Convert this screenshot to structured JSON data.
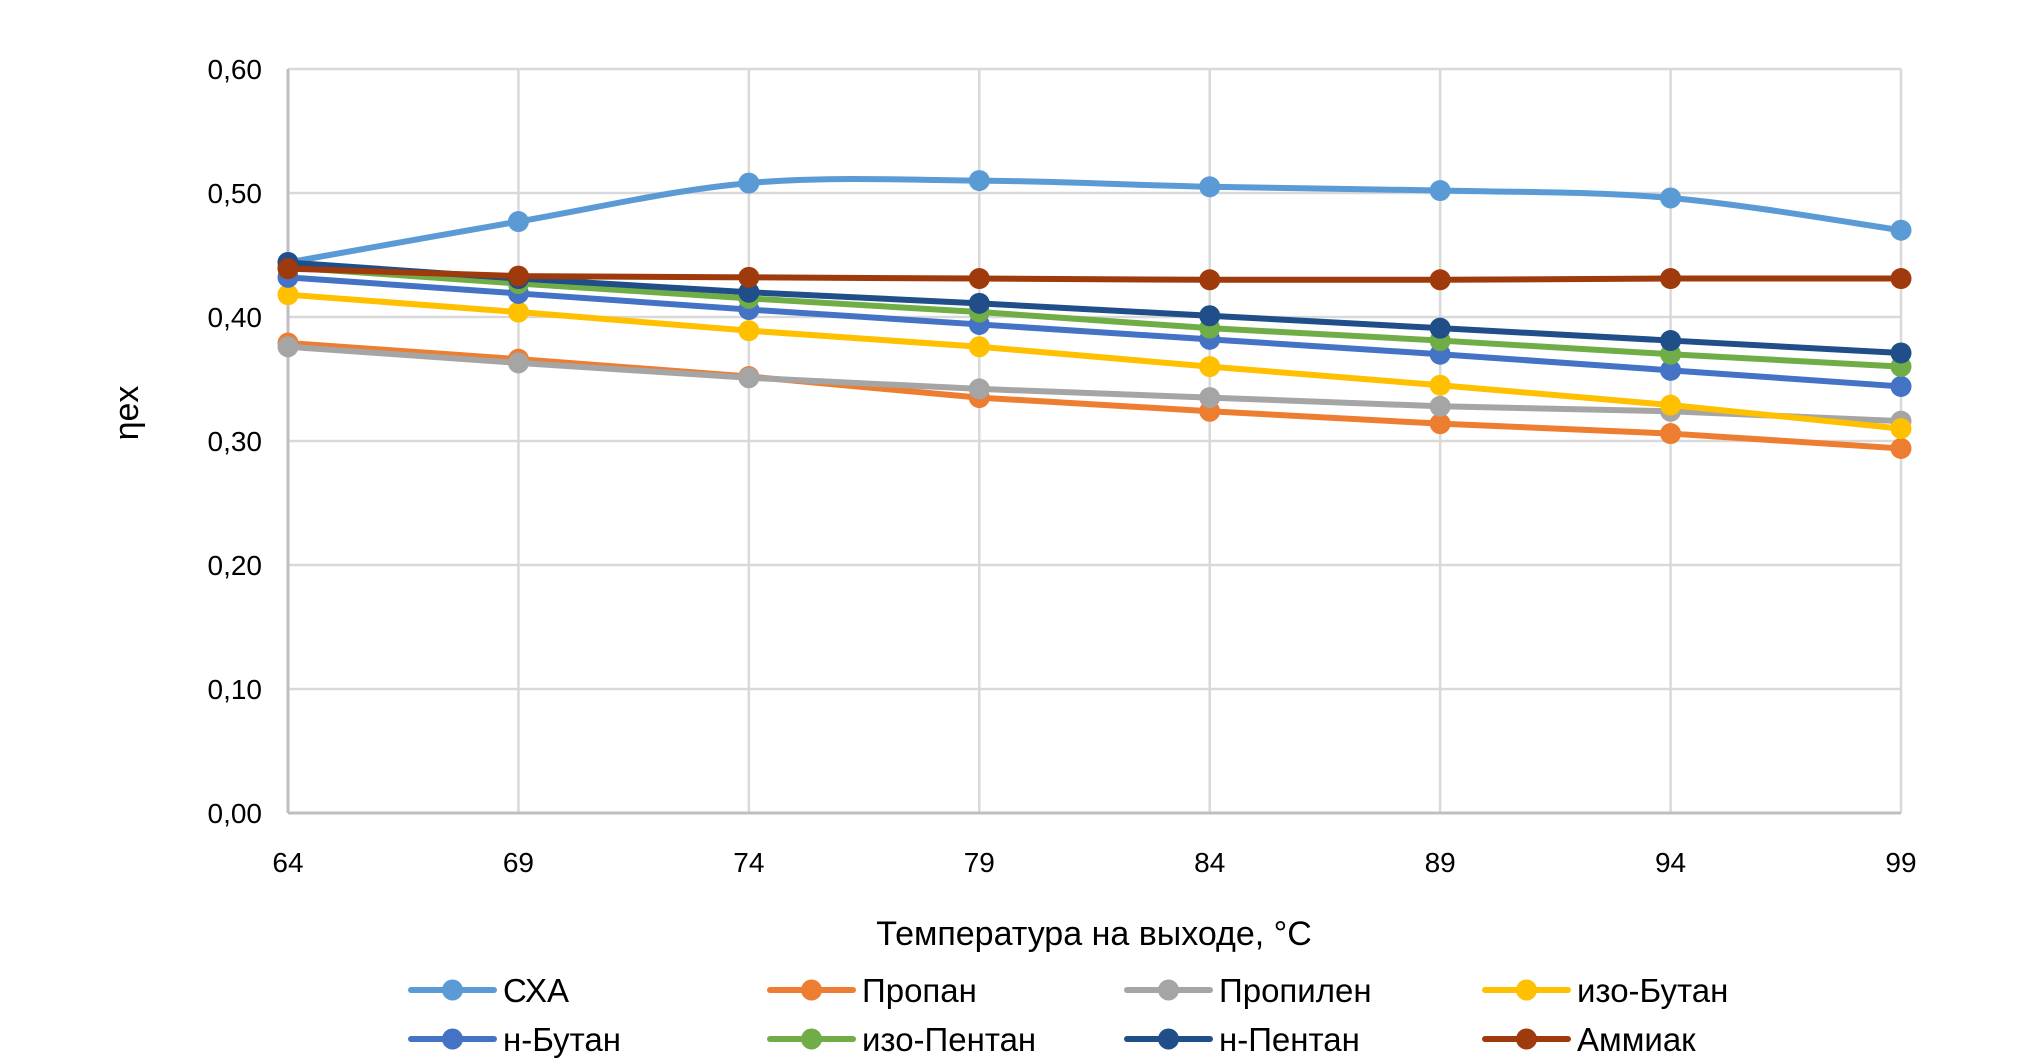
{
  "chart_data": {
    "type": "line",
    "title": "",
    "xlabel": "Температура на выходе, °C",
    "ylabel": "ηex",
    "x": [
      64,
      69,
      74,
      79,
      84,
      89,
      94,
      99
    ],
    "x_tick_labels": [
      "64",
      "69",
      "74",
      "79",
      "84",
      "89",
      "94",
      "99"
    ],
    "ylim": [
      0,
      0.6
    ],
    "y_ticks": [
      0,
      0.1,
      0.2,
      0.3,
      0.4,
      0.5,
      0.6
    ],
    "y_tick_labels": [
      "0,00",
      "0,10",
      "0,20",
      "0,30",
      "0,40",
      "0,50",
      "0,60"
    ],
    "grid": true,
    "legend_position": "bottom",
    "series": [
      {
        "name": "СХА",
        "color": "#5B9BD5",
        "smooth": true,
        "values": [
          0.444,
          0.477,
          0.508,
          0.51,
          0.505,
          0.502,
          0.496,
          0.47
        ]
      },
      {
        "name": "Пропан",
        "color": "#ED7D31",
        "smooth": false,
        "values": [
          0.379,
          0.366,
          0.352,
          0.335,
          0.324,
          0.314,
          0.306,
          0.294
        ]
      },
      {
        "name": "Пропилен",
        "color": "#A5A5A5",
        "smooth": false,
        "values": [
          0.376,
          0.363,
          0.351,
          0.342,
          0.335,
          0.328,
          0.324,
          0.316
        ]
      },
      {
        "name": "изо-Бутан",
        "color": "#FFC000",
        "smooth": false,
        "values": [
          0.418,
          0.404,
          0.389,
          0.376,
          0.36,
          0.345,
          0.329,
          0.31
        ]
      },
      {
        "name": "н-Бутан",
        "color": "#4472C4",
        "smooth": false,
        "values": [
          0.432,
          0.419,
          0.406,
          0.394,
          0.382,
          0.37,
          0.357,
          0.344
        ]
      },
      {
        "name": "изо-Пентан",
        "color": "#70AD47",
        "smooth": false,
        "values": [
          0.44,
          0.427,
          0.415,
          0.404,
          0.391,
          0.381,
          0.37,
          0.36
        ]
      },
      {
        "name": "н-Пентан",
        "color": "#1F4E89",
        "smooth": false,
        "values": [
          0.444,
          0.431,
          0.42,
          0.411,
          0.401,
          0.391,
          0.381,
          0.371
        ]
      },
      {
        "name": "Аммиак",
        "color": "#9E3A0B",
        "smooth": false,
        "values": [
          0.439,
          0.433,
          0.432,
          0.431,
          0.43,
          0.43,
          0.431,
          0.431
        ]
      }
    ]
  }
}
